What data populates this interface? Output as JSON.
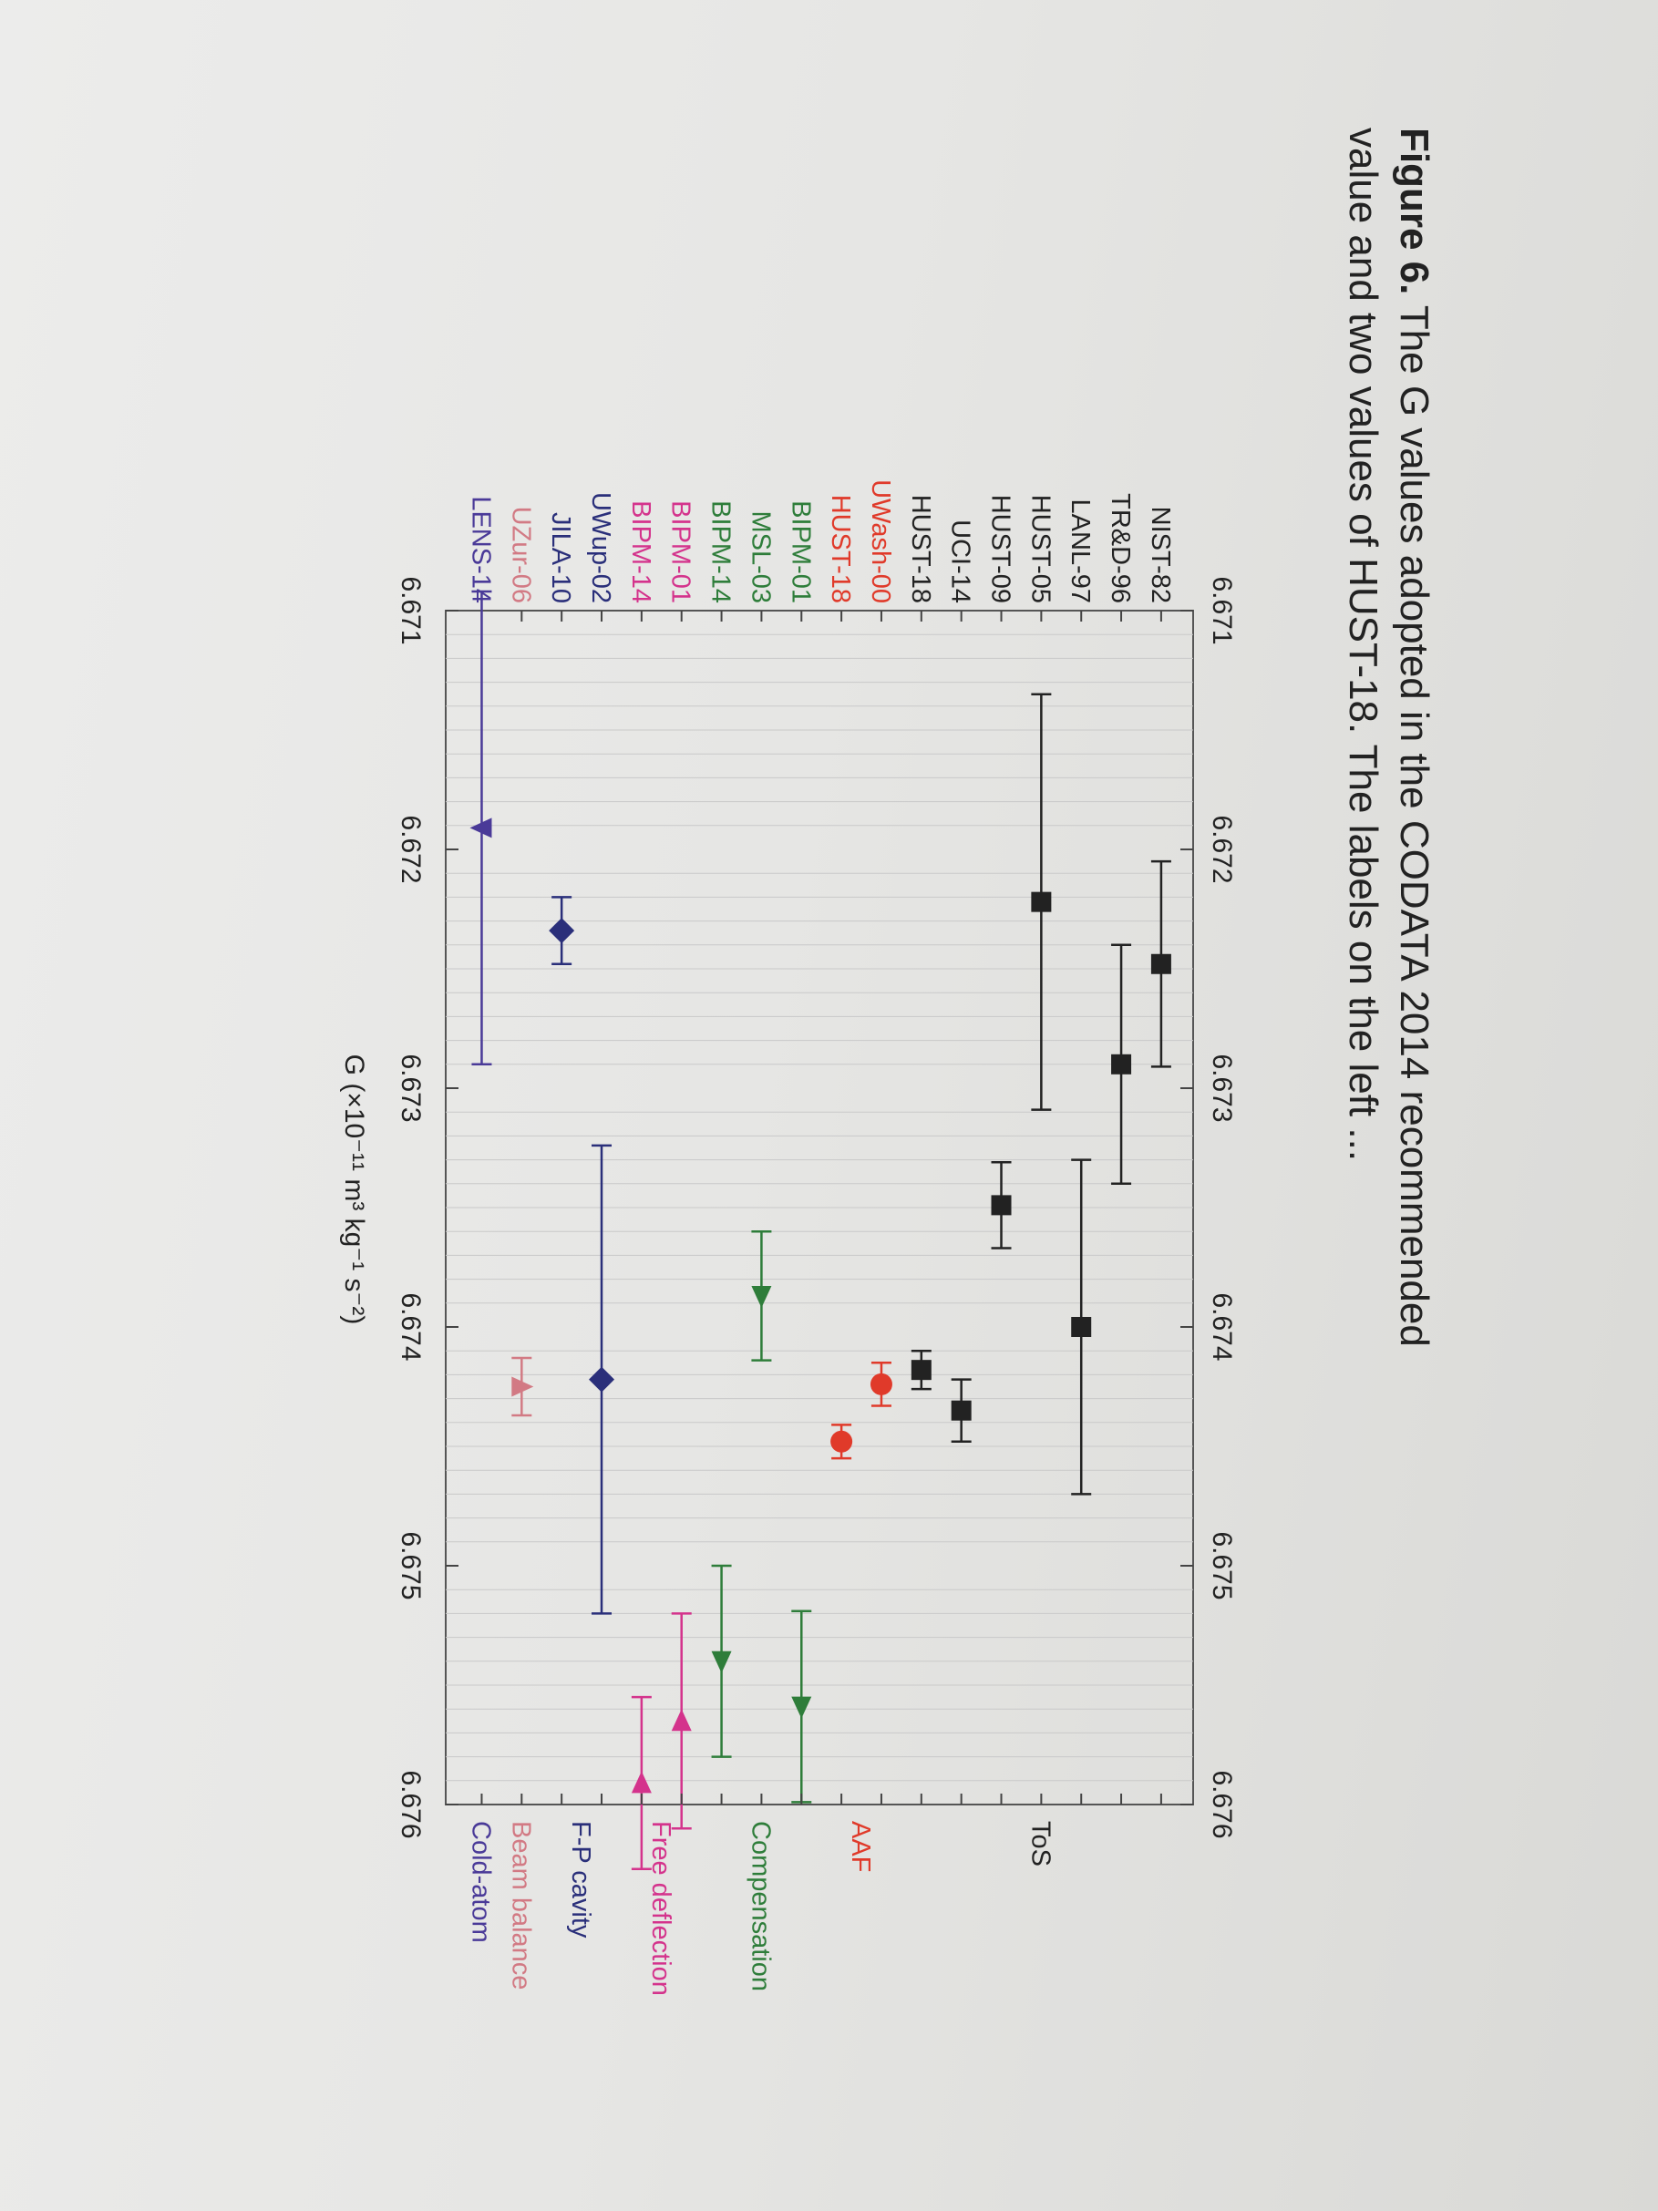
{
  "caption": {
    "label": "Figure 6.",
    "text": "The G values adopted in the CODATA 2014 recommended value and two values of HUST-18. The labels on the left ..."
  },
  "chart_data": {
    "type": "scatter",
    "orientation": "horizontal-error-bars",
    "xlabel": "G (×10⁻¹¹ m³ kg⁻¹ s⁻²)",
    "xlim": [
      6.671,
      6.676
    ],
    "xticks": [
      "6.671",
      "6.672",
      "6.673",
      "6.674",
      "6.675",
      "6.676"
    ],
    "grid": "vertical minor lines",
    "points": [
      {
        "label": "NIST-82",
        "value": 6.67248,
        "err": 0.00043,
        "method": "ToS",
        "marker": "square"
      },
      {
        "label": "TR&D-96",
        "value": 6.6729,
        "err": 0.0005,
        "method": "ToS",
        "marker": "square"
      },
      {
        "label": "LANL-97",
        "value": 6.674,
        "err": 0.0007,
        "method": "ToS",
        "marker": "square"
      },
      {
        "label": "HUST-05",
        "value": 6.67222,
        "err": 0.00087,
        "method": "ToS",
        "marker": "square"
      },
      {
        "label": "HUST-09",
        "value": 6.67349,
        "err": 0.00018,
        "method": "ToS",
        "marker": "square"
      },
      {
        "label": "UCI-14",
        "value": 6.67435,
        "err": 0.00013,
        "method": "ToS",
        "marker": "square"
      },
      {
        "label": "HUST-18",
        "value": 6.67418,
        "err": 8e-05,
        "method": "ToS",
        "marker": "square"
      },
      {
        "label": "UWash-00",
        "value": 6.67424,
        "err": 9e-05,
        "method": "AAF",
        "marker": "circle"
      },
      {
        "label": "HUST-18",
        "value": 6.67448,
        "err": 7e-05,
        "method": "AAF",
        "marker": "circle"
      },
      {
        "label": "BIPM-01",
        "value": 6.67559,
        "err": 0.0004,
        "method": "Compensation",
        "marker": "triangle-right"
      },
      {
        "label": "MSL-03",
        "value": 6.67387,
        "err": 0.00027,
        "method": "Compensation",
        "marker": "triangle-right"
      },
      {
        "label": "BIPM-14",
        "value": 6.6754,
        "err": 0.0004,
        "method": "Compensation",
        "marker": "triangle-right"
      },
      {
        "label": "BIPM-01",
        "value": 6.67565,
        "err": 0.00045,
        "method": "Free deflection",
        "marker": "triangle-left"
      },
      {
        "label": "BIPM-14",
        "value": 6.67591,
        "err": 0.00036,
        "method": "Free deflection",
        "marker": "triangle-left"
      },
      {
        "label": "UWup-02",
        "value": 6.67422,
        "err": 0.00098,
        "method": "F-P cavity",
        "marker": "diamond"
      },
      {
        "label": "JILA-10",
        "value": 6.67234,
        "err": 0.00014,
        "method": "F-P cavity",
        "marker": "diamond"
      },
      {
        "label": "UZur-06",
        "value": 6.67425,
        "err": 0.00012,
        "method": "Beam balance",
        "marker": "triangle-up"
      },
      {
        "label": "LENS-14",
        "value": 6.67191,
        "err": 0.00099,
        "method": "Cold-atom",
        "marker": "triangle-down"
      }
    ],
    "groups": [
      {
        "name": "ToS",
        "color": "#222222",
        "rows": [
          0,
          6
        ]
      },
      {
        "name": "AAF",
        "color": "#e03a2a",
        "rows": [
          7,
          8
        ]
      },
      {
        "name": "Compensation",
        "color": "#2e7d3a",
        "rows": [
          9,
          11
        ]
      },
      {
        "name": "Free deflection",
        "color": "#d4338c",
        "rows": [
          12,
          13
        ]
      },
      {
        "name": "F-P cavity",
        "color": "#2a2f7a",
        "rows": [
          14,
          15
        ]
      },
      {
        "name": "Beam balance",
        "color": "#d27a84",
        "rows": [
          16,
          16
        ]
      },
      {
        "name": "Cold-atom",
        "color": "#4a3a98",
        "rows": [
          17,
          17
        ]
      }
    ]
  }
}
